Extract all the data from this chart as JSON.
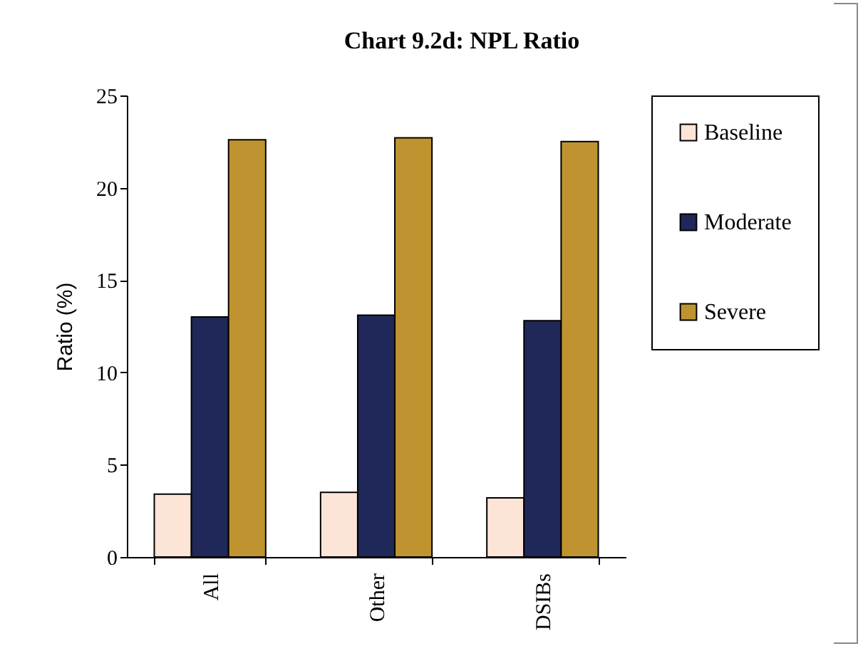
{
  "chart_data": {
    "type": "bar",
    "title": "Chart 9.2d: NPL Ratio",
    "ylabel": "Ratio (%)",
    "categories": [
      "All",
      "Other",
      "DSIBs"
    ],
    "series": [
      {
        "name": "Baseline",
        "color": "#fce4d6",
        "values": [
          3.4,
          3.5,
          3.2
        ]
      },
      {
        "name": "Moderate",
        "color": "#1f2858",
        "values": [
          13.0,
          13.1,
          12.8
        ]
      },
      {
        "name": "Severe",
        "color": "#bf9430",
        "values": [
          22.6,
          22.7,
          22.5
        ]
      }
    ],
    "ylim": [
      0,
      25
    ],
    "yticks": [
      0,
      5,
      10,
      15,
      20,
      25
    ],
    "grid": false,
    "legend": "right"
  }
}
